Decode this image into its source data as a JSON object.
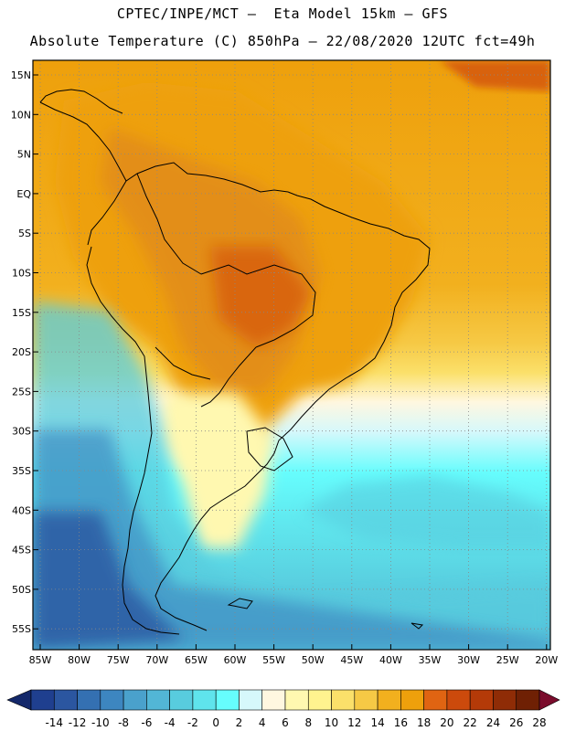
{
  "title_line1": "CPTEC/INPE/MCT –  Eta Model 15km – GFS",
  "title_line2": "Absolute Temperature (C) 850hPa – 22/08/2020 12UTC fct=49h",
  "latitude_labels": [
    "15N",
    "10N",
    "5N",
    "EQ",
    "5S",
    "10S",
    "15S",
    "20S",
    "25S",
    "30S",
    "35S",
    "40S",
    "45S",
    "50S",
    "55S"
  ],
  "longitude_labels": [
    "85W",
    "80W",
    "75W",
    "70W",
    "65W",
    "60W",
    "55W",
    "50W",
    "45W",
    "40W",
    "35W",
    "30W",
    "25W",
    "20W"
  ],
  "colorbar": {
    "ticks": [
      "-14",
      "-12",
      "-10",
      "-8",
      "-6",
      "-4",
      "-2",
      "0",
      "2",
      "4",
      "6",
      "8",
      "10",
      "12",
      "14",
      "16",
      "18",
      "20",
      "22",
      "24",
      "26",
      "28"
    ],
    "colors": [
      "#1f3f8f",
      "#2b56a0",
      "#3470b2",
      "#3d86c0",
      "#4aa1cc",
      "#52b6d6",
      "#58ccde",
      "#5fe4ec",
      "#66fdfd",
      "#d6f8fb",
      "#fff7e0",
      "#fff8b0",
      "#fff38f",
      "#fbe06a",
      "#f6c945",
      "#f2b01e",
      "#eea00c",
      "#e06412",
      "#cc4a0c",
      "#b43a08",
      "#8f2c06",
      "#6f2004"
    ],
    "left_arrow_color": "#14286a",
    "right_arrow_color": "#7a0c2c"
  }
}
